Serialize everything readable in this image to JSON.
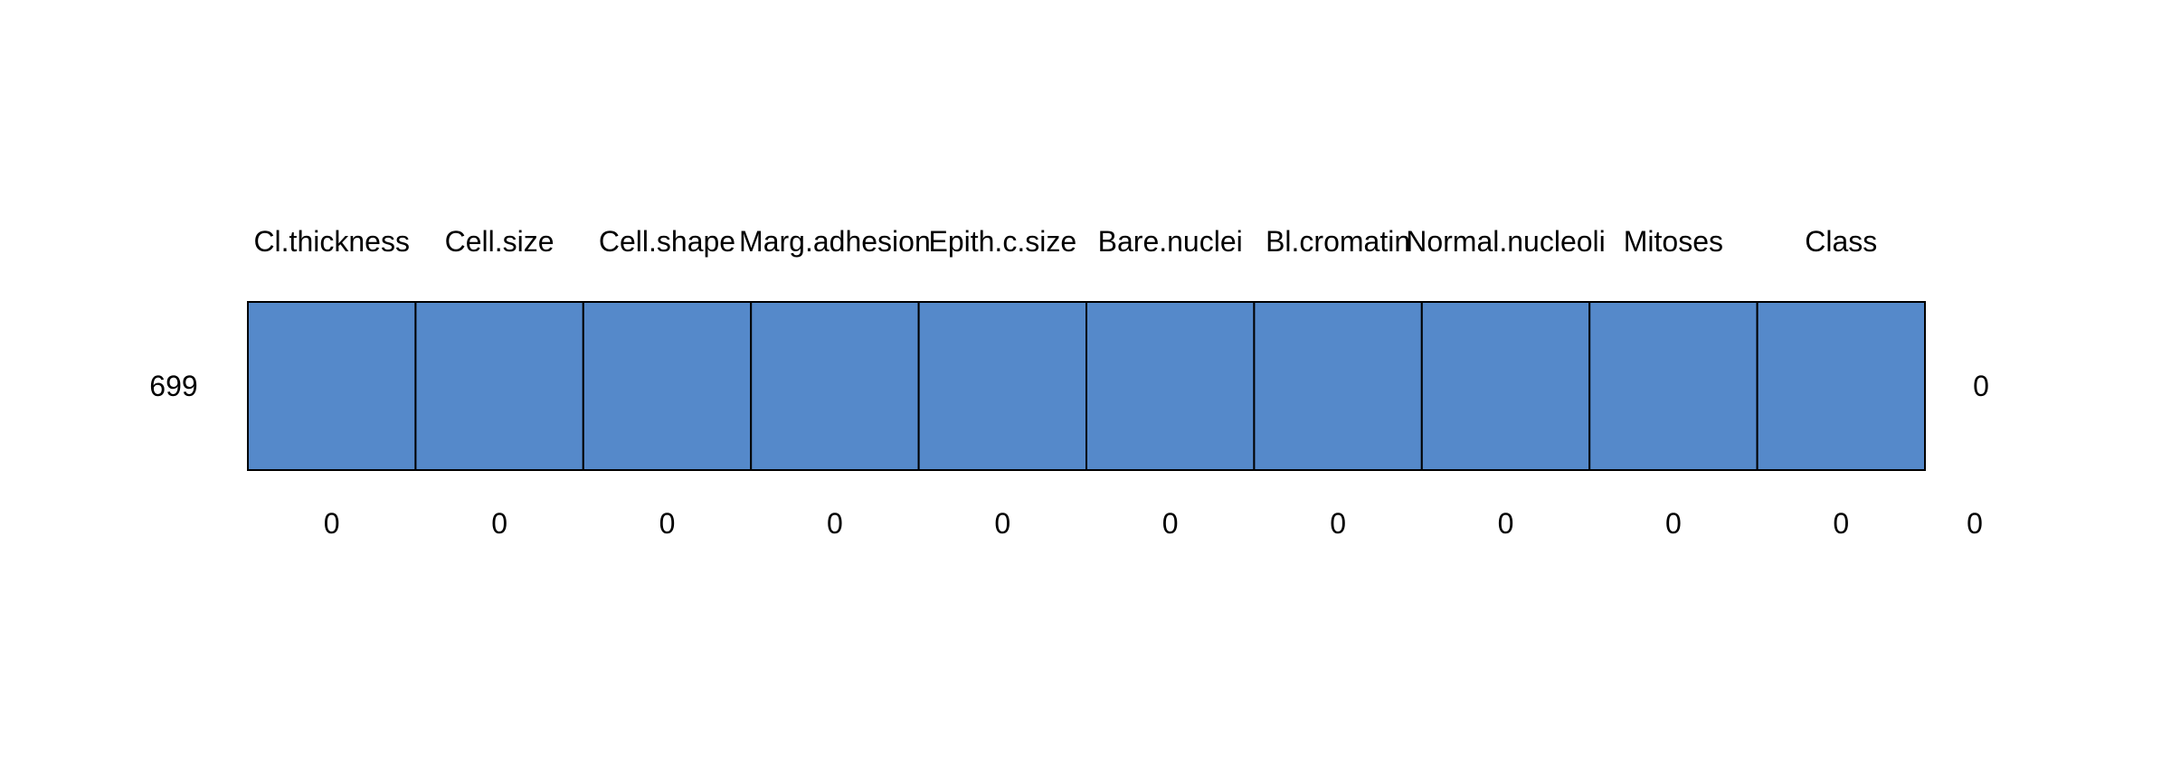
{
  "chart_data": {
    "type": "heatmap",
    "title": "",
    "columns": [
      "Cl.thickness",
      "Cell.size",
      "Cell.shape",
      "Marg.adhesion",
      "Epith.c.size",
      "Bare.nuclei",
      "Bl.cromatin",
      "Normal.nucleoli",
      "Mitoses",
      "Class"
    ],
    "rows": [
      {
        "label": "699",
        "cells": [
          0,
          0,
          0,
          0,
          0,
          0,
          0,
          0,
          0,
          0
        ],
        "missing_count": "0"
      }
    ],
    "column_missing_counts": [
      "0",
      "0",
      "0",
      "0",
      "0",
      "0",
      "0",
      "0",
      "0",
      "0"
    ],
    "total_missing": "0",
    "cell_color": "#5589CA",
    "border_color": "#000000"
  }
}
